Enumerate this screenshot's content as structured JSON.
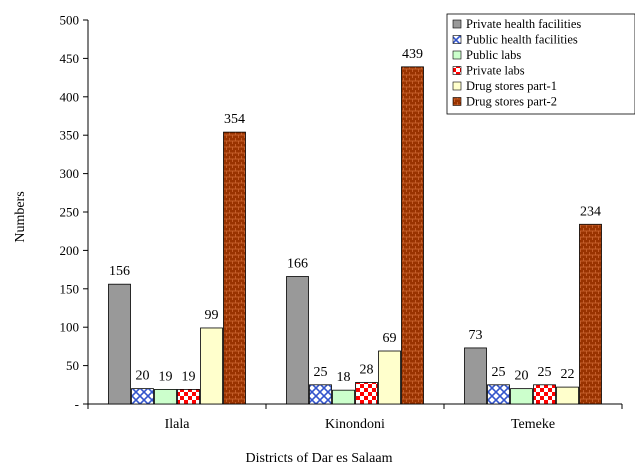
{
  "chart_data": {
    "type": "bar",
    "title": "",
    "xlabel": "Districts of Dar es Salaam",
    "ylabel": "Numbers",
    "ylim": [
      0,
      500
    ],
    "yticks": [
      0,
      50,
      100,
      150,
      200,
      250,
      300,
      350,
      400,
      450,
      500
    ],
    "yticklabels": [
      "-",
      "50",
      "100",
      "150",
      "200",
      "250",
      "300",
      "350",
      "400",
      "450",
      "500"
    ],
    "categories": [
      "Ilala",
      "Kinondoni",
      "Temeke"
    ],
    "grid": false,
    "legend_position": "top-right",
    "series": [
      {
        "name": "Private health facilities",
        "values": [
          156,
          166,
          73
        ],
        "color": "#999999",
        "pattern": "solid"
      },
      {
        "name": "Public health facilities",
        "values": [
          20,
          25,
          25
        ],
        "color": "#3355cc",
        "pattern": "weave"
      },
      {
        "name": "Public labs",
        "values": [
          19,
          18,
          20
        ],
        "color": "#ccffcc",
        "pattern": "solid"
      },
      {
        "name": "Private labs",
        "values": [
          19,
          28,
          25
        ],
        "color": "#ff0000",
        "pattern": "checker"
      },
      {
        "name": "Drug stores part-1",
        "values": [
          99,
          69,
          22
        ],
        "color": "#ffffcc",
        "pattern": "solid"
      },
      {
        "name": "Drug stores part-2",
        "values": [
          354,
          439,
          234
        ],
        "color": "#993300",
        "pattern": "brick"
      }
    ]
  }
}
